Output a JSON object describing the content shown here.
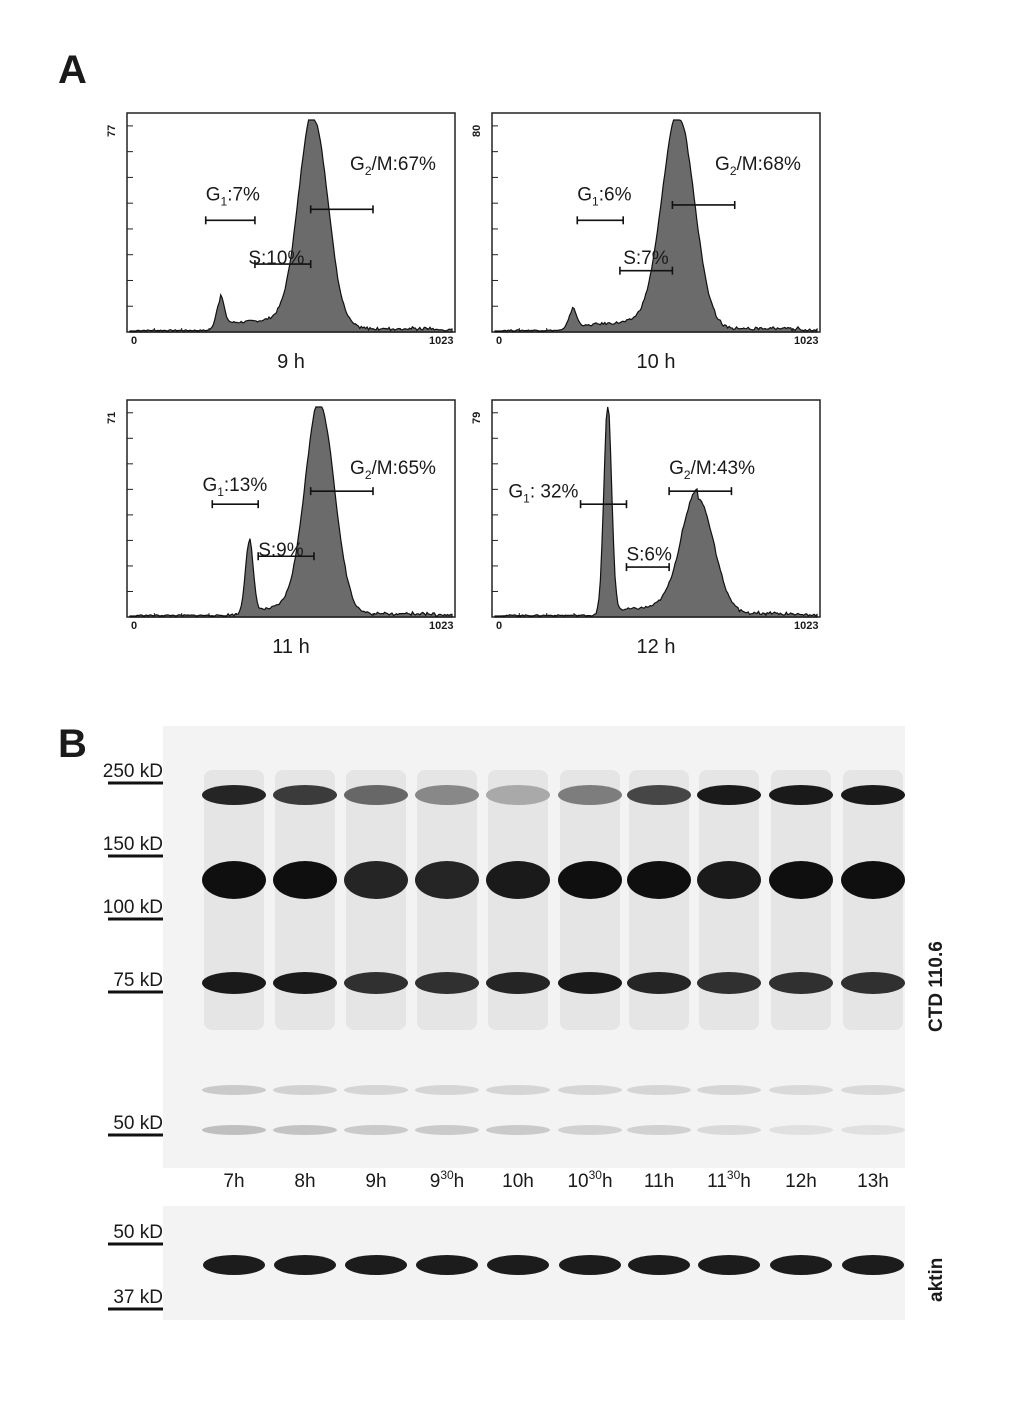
{
  "panel_a_label": "A",
  "panel_b_label": "B",
  "histograms": [
    {
      "time": "9 h",
      "y_max": "77",
      "x_min": "0",
      "x_max": "1023",
      "g1": {
        "sym": "G",
        "sub": "1",
        "text": ":7%"
      },
      "s": "S:10%",
      "g2": {
        "sym": "G",
        "sub": "2",
        "text": "/M:67%"
      },
      "profile": {
        "g1_peak": 0.48,
        "g1_height": 0.14,
        "g2_peak": 0.77,
        "g2_height": 1.0,
        "g2_width": 0.045,
        "s_level": 0.03
      }
    },
    {
      "time": "10 h",
      "y_max": "80",
      "x_min": "0",
      "x_max": "1023",
      "g1": {
        "sym": "G",
        "sub": "1",
        "text": ":6%"
      },
      "s": "S:7%",
      "g2": {
        "sym": "G",
        "sub": "2",
        "text": "/M:68%"
      },
      "profile": {
        "g1_peak": 0.44,
        "g1_height": 0.09,
        "g2_peak": 0.77,
        "g2_height": 1.0,
        "g2_width": 0.05,
        "s_level": 0.02
      }
    },
    {
      "time": "11 h",
      "y_max": "71",
      "x_min": "0",
      "x_max": "1023",
      "g1": {
        "sym": "G",
        "sub": "1",
        "text": ":13%"
      },
      "s": "S:9%",
      "g2": {
        "sym": "G",
        "sub": "2",
        "text": "/M:65%"
      },
      "profile": {
        "g1_peak": 0.57,
        "g1_height": 0.35,
        "g2_peak": 0.79,
        "g2_height": 1.0,
        "g2_width": 0.045,
        "s_level": 0.02
      }
    },
    {
      "time": "12 h",
      "y_max": "79",
      "x_min": "0",
      "x_max": "1023",
      "g1": {
        "sym": "G",
        "sub": "1",
        "text": ": 32%"
      },
      "s": "S:6%",
      "g2": {
        "sym": "G",
        "sub": "2",
        "text": "/M:43%"
      },
      "profile": {
        "g1_peak": 0.55,
        "g1_height": 1.0,
        "g2_peak": 0.83,
        "g2_height": 0.55,
        "g2_width": 0.05,
        "s_level": 0.02
      }
    }
  ],
  "blot": {
    "markers": [
      "250 kD",
      "150 kD",
      "100 kD",
      "75 kD",
      "50 kD"
    ],
    "lanes": [
      {
        "base": "7h",
        "sup": ""
      },
      {
        "base": "8h",
        "sup": ""
      },
      {
        "base": "9h",
        "sup": ""
      },
      {
        "base": "9",
        "sup": "30",
        "suffix": "h"
      },
      {
        "base": "10h",
        "sup": ""
      },
      {
        "base": "10",
        "sup": "30",
        "suffix": "h"
      },
      {
        "base": "11h",
        "sup": ""
      },
      {
        "base": "11",
        "sup": "30",
        "suffix": "h"
      },
      {
        "base": "12h",
        "sup": ""
      },
      {
        "base": "13h",
        "sup": ""
      }
    ],
    "antibody_label": "CTD 110.6",
    "actin_markers": [
      "50 kD",
      "37 kD"
    ],
    "actin_label": "aktin"
  }
}
